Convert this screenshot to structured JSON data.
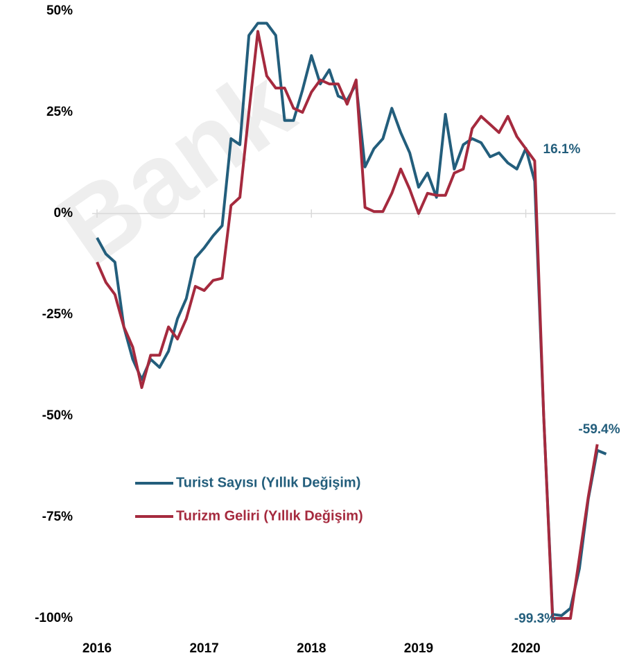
{
  "chart_data": {
    "type": "line",
    "watermark": "Bank",
    "x": [
      2016,
      2016.083,
      2016.167,
      2016.25,
      2016.333,
      2016.417,
      2016.5,
      2016.583,
      2016.667,
      2016.75,
      2016.833,
      2016.917,
      2017,
      2017.083,
      2017.167,
      2017.25,
      2017.333,
      2017.417,
      2017.5,
      2017.583,
      2017.667,
      2017.75,
      2017.833,
      2017.917,
      2018,
      2018.083,
      2018.167,
      2018.25,
      2018.333,
      2018.417,
      2018.5,
      2018.583,
      2018.667,
      2018.75,
      2018.833,
      2018.917,
      2019,
      2019.083,
      2019.167,
      2019.25,
      2019.333,
      2019.417,
      2019.5,
      2019.583,
      2019.667,
      2019.75,
      2019.833,
      2019.917,
      2020,
      2020.083,
      2020.167,
      2020.25,
      2020.333,
      2020.417,
      2020.5,
      2020.583,
      2020.667,
      2020.75
    ],
    "series": [
      {
        "name": "Turist Sayısı (Yıllık Değişim)",
        "color": "#235e7c",
        "values": [
          -6,
          -10,
          -12,
          -28,
          -36,
          -41,
          -36,
          -38,
          -34,
          -26,
          -21,
          -11,
          -8.5,
          -5.5,
          -3,
          18.5,
          17,
          44,
          47,
          47,
          44,
          23,
          23,
          30.5,
          39,
          32,
          35.5,
          29,
          28,
          32,
          11.5,
          16,
          18.5,
          26,
          20,
          15,
          6.5,
          10,
          4,
          24.5,
          11,
          17,
          18.5,
          17.5,
          14,
          15,
          12.5,
          11,
          16.1,
          8,
          -50,
          -99,
          -99.3,
          -97.5,
          -87.7,
          -70.5,
          -58.5,
          -59.4
        ],
        "value_labels": [
          null,
          null,
          null,
          null,
          null,
          null,
          null,
          null,
          null,
          null,
          null,
          null,
          null,
          null,
          null,
          null,
          null,
          null,
          null,
          null,
          null,
          null,
          null,
          null,
          null,
          null,
          null,
          null,
          null,
          null,
          null,
          null,
          null,
          null,
          null,
          null,
          null,
          null,
          null,
          null,
          null,
          null,
          null,
          null,
          null,
          null,
          null,
          null,
          "16.1%",
          null,
          null,
          null,
          "-99.3%",
          null,
          null,
          null,
          null,
          "-59.4%"
        ]
      },
      {
        "name": "Turizm Geliri (Yıllık Değişim)",
        "color": "#a52a3e",
        "values": [
          -12,
          -17,
          -20,
          -28,
          -33,
          -43,
          -35,
          -35,
          -28,
          -31,
          -26,
          -18,
          -19,
          -16.5,
          -16,
          2,
          4,
          25,
          45,
          34,
          31,
          31,
          26,
          25,
          30,
          33,
          32,
          32,
          27,
          33,
          1.5,
          0.5,
          0.5,
          5,
          11,
          6,
          0,
          5,
          4.5,
          4.5,
          10,
          11,
          21,
          24,
          22,
          20,
          24,
          19,
          16,
          13,
          -50,
          -100,
          -100,
          -100,
          -85,
          -70,
          -57,
          null
        ]
      }
    ],
    "xlim": [
      2016,
      2020.85
    ],
    "xticks": [
      2016,
      2017,
      2018,
      2019,
      2020
    ],
    "ylim": [
      -100,
      50
    ],
    "yticks": [
      {
        "value": -100,
        "label": "-100%"
      },
      {
        "value": -75,
        "label": "-75%"
      },
      {
        "value": -50,
        "label": "-50%"
      },
      {
        "value": -25,
        "label": "-25%"
      },
      {
        "value": 0,
        "label": "0%"
      },
      {
        "value": 25,
        "label": "25%"
      },
      {
        "value": 50,
        "label": "50%"
      }
    ],
    "legend": "lower left"
  }
}
